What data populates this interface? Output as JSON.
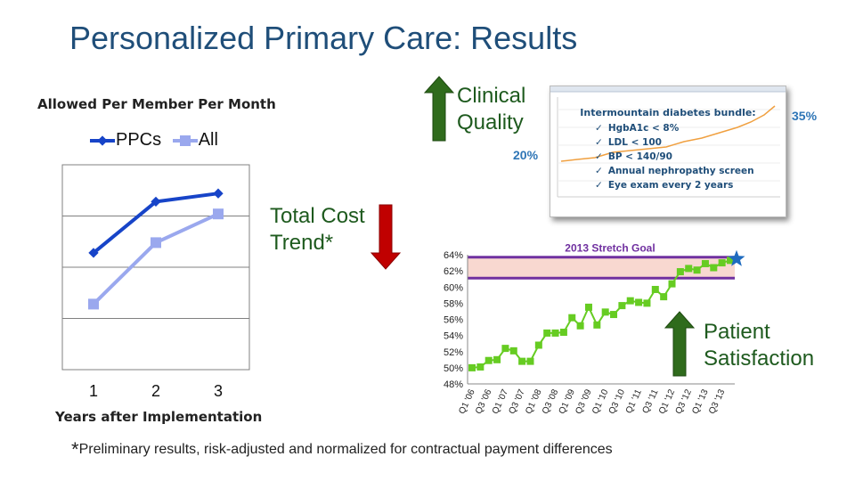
{
  "title": "Personalized Primary Care: Results",
  "labels": {
    "clinical_quality": [
      "Clinical",
      "Quality"
    ],
    "total_cost_trend": [
      "Total Cost",
      "Trend*"
    ],
    "patient_satisfaction": [
      "Patient",
      "Satisfaction"
    ]
  },
  "colors": {
    "title": "#1f4e79",
    "ppcs": "#1744c8",
    "all": "#9aa8ee",
    "arrow_green": "#2f6b1c",
    "arrow_red": "#c00000",
    "satisfaction_points": "#66cc22",
    "goal_line": "#7030a0",
    "goal_band": "#f8d8d0",
    "star": "#1f6bbf"
  },
  "footnote": {
    "mark": "*",
    "text": "Preliminary results, risk-adjusted and normalized for contractual payment differences"
  },
  "clinical_inset": {
    "title": "Intermountain diabetes bundle:",
    "items": [
      "HgbA1c < 8%",
      "LDL < 100",
      "BP < 140/90",
      "Annual nephropathy screen",
      "Eye exam every 2 years"
    ],
    "start_value": "20%",
    "end_value": "35%"
  },
  "chart_data": [
    {
      "type": "line",
      "title": "Allowed Per Member Per Month",
      "xlabel": "Years after Implementation",
      "ylabel": "",
      "categories": [
        "1",
        "2",
        "3"
      ],
      "series": [
        {
          "name": "PPCs",
          "values": [
            0.57,
            0.82,
            0.86
          ]
        },
        {
          "name": "All",
          "values": [
            0.32,
            0.62,
            0.76
          ]
        }
      ],
      "ylim": [
        0,
        1
      ],
      "y_ticks_labeled": false,
      "grid": true,
      "legend": "top"
    },
    {
      "type": "scatter",
      "title": "",
      "xlabel": "",
      "ylabel": "",
      "categories": [
        "Q1 '06",
        "Q2 '06",
        "Q3 '06",
        "Q4 '06",
        "Q1 '07",
        "Q2 '07",
        "Q3 '07",
        "Q4 '07",
        "Q1 '08",
        "Q2 '08",
        "Q3 '08",
        "Q4 '08",
        "Q1 '09",
        "Q2 '09",
        "Q3 '09",
        "Q4 '09",
        "Q1 '10",
        "Q2 '10",
        "Q3 '10",
        "Q4 '10",
        "Q1 '11",
        "Q2 '11",
        "Q3 '11",
        "Q4 '11",
        "Q1 '12",
        "Q2 '12",
        "Q3 '12",
        "Q4 '12",
        "Q1 '13",
        "Q2 '13",
        "Q3 '13",
        "Q4 '13"
      ],
      "tick_labels": [
        "Q1 '06",
        "Q3 '06",
        "Q1 '07",
        "Q3 '07",
        "Q1 '08",
        "Q3 '08",
        "Q1 '09",
        "Q3 '09",
        "Q1 '10",
        "Q3 '10",
        "Q1 '11",
        "Q3 '11",
        "Q1 '12",
        "Q3 '12",
        "Q1 '13",
        "Q3 '13"
      ],
      "values": [
        50.0,
        50.1,
        50.9,
        51.0,
        52.4,
        52.1,
        50.8,
        50.8,
        52.8,
        54.3,
        54.3,
        54.4,
        56.2,
        55.2,
        57.5,
        55.3,
        56.9,
        56.6,
        57.7,
        58.3,
        58.1,
        58.0,
        59.7,
        58.8,
        60.4,
        61.9,
        62.3,
        62.1,
        62.9,
        62.4,
        63.0,
        63.3
      ],
      "ylim": [
        48,
        64
      ],
      "y_ticks": [
        "48%",
        "50%",
        "52%",
        "54%",
        "56%",
        "58%",
        "60%",
        "62%",
        "64%"
      ],
      "goal_label": "2013 Stretch Goal",
      "goal_band": [
        61.1,
        63.7
      ],
      "grid": false
    }
  ]
}
